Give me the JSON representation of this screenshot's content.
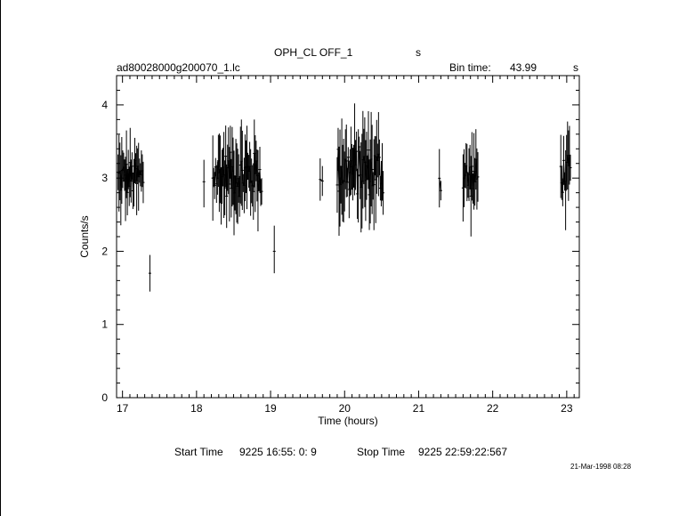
{
  "header": {
    "title": "OPH_CL OFF_1",
    "title_suffix": "s",
    "filename": "ad80028000g200070_1.lc",
    "bin_label": "Bin time:",
    "bin_value": "43.99",
    "bin_unit": "s"
  },
  "footer": {
    "start_label": "Start Time",
    "start_value": "9225 16:55: 0:  9",
    "stop_label": "Stop Time",
    "stop_value": "9225 22:59:22:567",
    "timestamp": "21-Mar-1998 08:28"
  },
  "chart_data": {
    "type": "line",
    "xlabel": "Time (hours)",
    "ylabel": "Counts/s",
    "xlim": [
      16.92,
      23.17
    ],
    "ylim": [
      0,
      4.4
    ],
    "xticks": [
      17,
      18,
      19,
      20,
      21,
      22,
      23
    ],
    "yticks": [
      0,
      1,
      2,
      3,
      4
    ],
    "segments": [
      {
        "x_start": 16.94,
        "x_end": 17.28,
        "mean": 3.0,
        "low": 2.3,
        "high": 3.75
      },
      {
        "x_start": 17.37,
        "x_end": 17.37,
        "mean": 1.7,
        "low": 1.45,
        "high": 1.95
      },
      {
        "x_start": 18.1,
        "x_end": 18.1,
        "mean": 2.95,
        "low": 2.6,
        "high": 3.25
      },
      {
        "x_start": 18.22,
        "x_end": 18.88,
        "mean": 3.05,
        "low": 2.05,
        "high": 3.8
      },
      {
        "x_start": 19.05,
        "x_end": 19.05,
        "mean": 2.0,
        "low": 1.7,
        "high": 2.35
      },
      {
        "x_start": 19.67,
        "x_end": 19.7,
        "mean": 2.9,
        "low": 2.5,
        "high": 3.35
      },
      {
        "x_start": 19.9,
        "x_end": 20.52,
        "mean": 3.1,
        "low": 2.05,
        "high": 4.02
      },
      {
        "x_start": 21.28,
        "x_end": 21.3,
        "mean": 2.95,
        "low": 2.45,
        "high": 3.55
      },
      {
        "x_start": 21.6,
        "x_end": 21.8,
        "mean": 3.0,
        "low": 2.15,
        "high": 3.7
      },
      {
        "x_start": 22.92,
        "x_end": 23.05,
        "mean": 3.05,
        "low": 2.25,
        "high": 3.8
      }
    ]
  },
  "colors": {
    "axes": "#000000",
    "data": "#000000",
    "background": "#ffffff"
  }
}
